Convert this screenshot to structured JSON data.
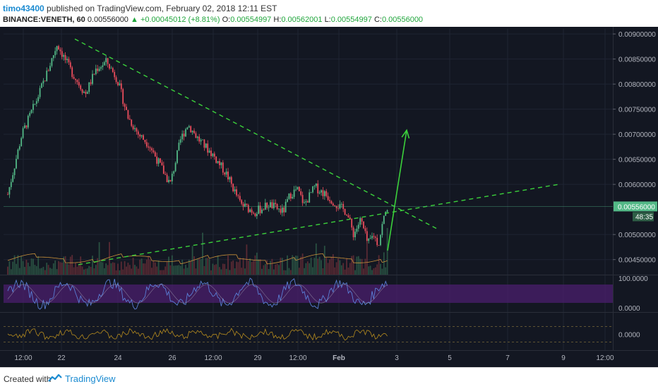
{
  "header": {
    "user": "timo43400",
    "published": "published on TradingView.com, February 02, 2018 12:11 EST",
    "symbol": "BINANCE:VENETH, 60",
    "last": "0.00556000",
    "change": "+0.00045012 (+8.81%)",
    "o_label": "O:",
    "o": "0.00554997",
    "h_label": "H:",
    "h": "0.00562001",
    "l_label": "L:",
    "l": "0.00554997",
    "c_label": "C:",
    "c": "0.00556000"
  },
  "footer": {
    "created": "Created with",
    "brand": "TradingView"
  },
  "colors": {
    "bg": "#131722",
    "up": "#53b987",
    "down": "#eb4d5c",
    "trend": "#3bd13b",
    "rsi_fill": "#4b1f6e",
    "rsi_line": "#5a7fd6",
    "osc": "#b58b1e",
    "price_tag": "#53b987"
  },
  "chart_data": {
    "type": "candlestick",
    "price_axis": {
      "min": 0.0042,
      "max": 0.0091,
      "ticks": [
        "0.00900000",
        "0.00850000",
        "0.00800000",
        "0.00750000",
        "0.00700000",
        "0.00650000",
        "0.00600000",
        "0.00500000",
        "0.00450000"
      ]
    },
    "current_price": "0.00556000",
    "countdown": "48:35",
    "time_axis": [
      "12:00",
      "22",
      "24",
      "26",
      "12:00",
      "29",
      "12:00",
      "Feb",
      "3",
      "5",
      "7",
      "9",
      "12:00"
    ],
    "close_path": [
      {
        "t": 0,
        "p": 0.0058
      },
      {
        "t": 20,
        "p": 0.007
      },
      {
        "t": 40,
        "p": 0.00765
      },
      {
        "t": 55,
        "p": 0.0082
      },
      {
        "t": 70,
        "p": 0.0088
      },
      {
        "t": 90,
        "p": 0.00825
      },
      {
        "t": 110,
        "p": 0.0078
      },
      {
        "t": 125,
        "p": 0.0083
      },
      {
        "t": 140,
        "p": 0.00845
      },
      {
        "t": 155,
        "p": 0.0081
      },
      {
        "t": 170,
        "p": 0.00735
      },
      {
        "t": 185,
        "p": 0.007
      },
      {
        "t": 200,
        "p": 0.0068
      },
      {
        "t": 215,
        "p": 0.0064
      },
      {
        "t": 230,
        "p": 0.006
      },
      {
        "t": 245,
        "p": 0.0069
      },
      {
        "t": 255,
        "p": 0.0072
      },
      {
        "t": 270,
        "p": 0.0069
      },
      {
        "t": 290,
        "p": 0.0066
      },
      {
        "t": 310,
        "p": 0.0062
      },
      {
        "t": 330,
        "p": 0.0056
      },
      {
        "t": 350,
        "p": 0.00545
      },
      {
        "t": 370,
        "p": 0.0056
      },
      {
        "t": 390,
        "p": 0.00545
      },
      {
        "t": 400,
        "p": 0.0058
      },
      {
        "t": 410,
        "p": 0.0059
      },
      {
        "t": 420,
        "p": 0.0056
      },
      {
        "t": 435,
        "p": 0.00595
      },
      {
        "t": 450,
        "p": 0.0058
      },
      {
        "t": 470,
        "p": 0.00555
      },
      {
        "t": 480,
        "p": 0.00545
      },
      {
        "t": 490,
        "p": 0.005
      },
      {
        "t": 500,
        "p": 0.0053
      },
      {
        "t": 510,
        "p": 0.0048
      },
      {
        "t": 518,
        "p": 0.005
      },
      {
        "t": 525,
        "p": 0.0048
      },
      {
        "t": 532,
        "p": 0.0053
      },
      {
        "t": 538,
        "p": 0.00556
      }
    ],
    "trendlines": [
      {
        "name": "resistance",
        "from": {
          "t": 95,
          "p": 0.0089
        },
        "to": {
          "t": 610,
          "p": 0.0051
        }
      },
      {
        "name": "support",
        "from": {
          "t": 100,
          "p": 0.0044
        },
        "to": {
          "t": 780,
          "p": 0.006
        }
      }
    ],
    "arrow": {
      "from": {
        "t": 538,
        "p": 0.00468
      },
      "to": {
        "t": 565,
        "p": 0.00708
      }
    },
    "rsi_axis": [
      "100.0000",
      "0.0000"
    ],
    "osc_axis": [
      "0.0000"
    ]
  }
}
